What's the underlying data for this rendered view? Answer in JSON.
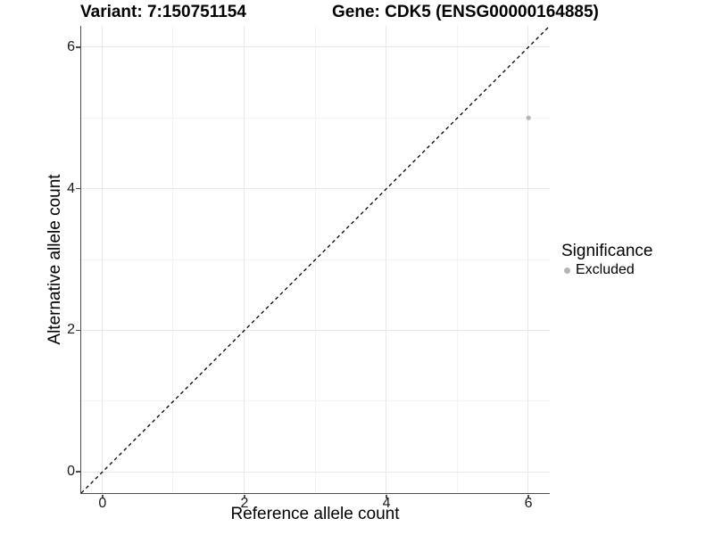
{
  "chart_data": {
    "type": "scatter",
    "title_left": "Variant: 7:150751154",
    "title_right": "Gene: CDK5 (ENSG00000164885)",
    "xlabel": "Reference allele count",
    "ylabel": "Alternative allele count",
    "xlim": [
      -0.3,
      6.3
    ],
    "ylim": [
      -0.3,
      6.3
    ],
    "x_ticks": [
      0,
      2,
      4,
      6
    ],
    "y_ticks": [
      0,
      2,
      4,
      6
    ],
    "x_minor_ticks": [
      1,
      3,
      5
    ],
    "y_minor_ticks": [
      1,
      3,
      5
    ],
    "grid": "on",
    "points": [
      {
        "x": 6,
        "y": 5,
        "series": "Excluded"
      }
    ],
    "identity_line": {
      "from": [
        -0.3,
        -0.3
      ],
      "to": [
        6.3,
        6.3
      ],
      "style": "dashed",
      "color": "#000000"
    },
    "legend": {
      "position": "right",
      "title": "Significance",
      "items": [
        {
          "label": "Excluded",
          "color": "#b5b5b5"
        }
      ]
    },
    "colors": {
      "point": "#b5b5b5",
      "axis_line": "#4d4d4d",
      "grid_major": "#e8e8e8",
      "grid_minor": "#f3f3f3",
      "dashed_line": "#000000"
    }
  }
}
